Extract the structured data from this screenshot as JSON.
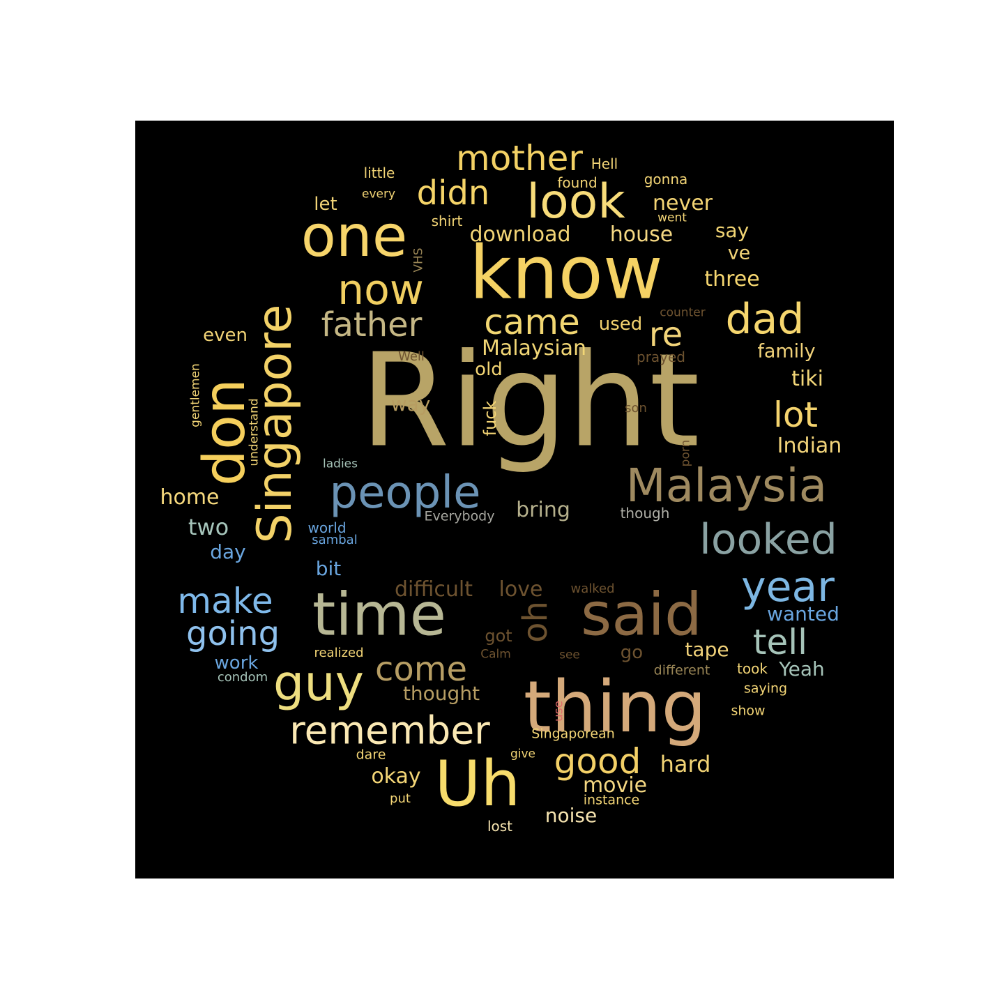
{
  "words": [
    {
      "text": "Right",
      "color": "#b8a467"
    },
    {
      "text": "know",
      "color": "#f5d264"
    },
    {
      "text": "thing",
      "color": "#d4a97a"
    },
    {
      "text": "said",
      "color": "#8c6a44"
    },
    {
      "text": "time",
      "color": "#b7b794"
    },
    {
      "text": "Uh",
      "color": "#f7dc6c"
    },
    {
      "text": "one",
      "color": "#f7d56b"
    },
    {
      "text": "look",
      "color": "#f8dc7a"
    },
    {
      "text": "Singapore",
      "color": "#f3d268"
    },
    {
      "text": "don",
      "color": "#f5cf5c"
    },
    {
      "text": "Malaysia",
      "color": "#9f8a60"
    },
    {
      "text": "people",
      "color": "#6b93b5"
    },
    {
      "text": "guy",
      "color": "#eede80"
    },
    {
      "text": "now",
      "color": "#f1cf61"
    },
    {
      "text": "dad",
      "color": "#f6d66e"
    },
    {
      "text": "looked",
      "color": "#8aa2a3"
    },
    {
      "text": "remember",
      "color": "#fbe9b4"
    },
    {
      "text": "year",
      "color": "#7db7e3"
    },
    {
      "text": "mother",
      "color": "#f3d165"
    },
    {
      "text": "came",
      "color": "#f2d772"
    },
    {
      "text": "father",
      "color": "#c5b785"
    },
    {
      "text": "come",
      "color": "#b79e64"
    },
    {
      "text": "make",
      "color": "#7fb9ea"
    },
    {
      "text": "going",
      "color": "#8fc1ed"
    },
    {
      "text": "tell",
      "color": "#a6c4b9"
    },
    {
      "text": "good",
      "color": "#f3d067"
    },
    {
      "text": "didn",
      "color": "#f5d468"
    },
    {
      "text": "lot",
      "color": "#f5d46e"
    },
    {
      "text": "re",
      "color": "#f2d47a"
    },
    {
      "text": "oh",
      "color": "#6e5330"
    },
    {
      "text": "Malaysian",
      "color": "#f2d776"
    },
    {
      "text": "Indian",
      "color": "#f3d57b"
    },
    {
      "text": "tiki",
      "color": "#f3d779"
    },
    {
      "text": "three",
      "color": "#f6d771"
    },
    {
      "text": "family",
      "color": "#f1d27a"
    },
    {
      "text": "house",
      "color": "#f5d883"
    },
    {
      "text": "download",
      "color": "#f3d576"
    },
    {
      "text": "never",
      "color": "#f4d575"
    },
    {
      "text": "say",
      "color": "#f2d574"
    },
    {
      "text": "ve",
      "color": "#f2d477"
    },
    {
      "text": "used",
      "color": "#f3d26f"
    },
    {
      "text": "old",
      "color": "#f3d574"
    },
    {
      "text": "way",
      "color": "#b79c61"
    },
    {
      "text": "fuck",
      "color": "#f4d575"
    },
    {
      "text": "even",
      "color": "#f2d477"
    },
    {
      "text": "let",
      "color": "#f2d477"
    },
    {
      "text": "home",
      "color": "#f7da7e"
    },
    {
      "text": "two",
      "color": "#a7c6bc"
    },
    {
      "text": "day",
      "color": "#6aa6e0"
    },
    {
      "text": "bit",
      "color": "#6aa6e0"
    },
    {
      "text": "bring",
      "color": "#b5b08c"
    },
    {
      "text": "difficult",
      "color": "#6e5330"
    },
    {
      "text": "love",
      "color": "#6e5330"
    },
    {
      "text": "wanted",
      "color": "#6aa6e0"
    },
    {
      "text": "tape",
      "color": "#f1d27a"
    },
    {
      "text": "Yeah",
      "color": "#a6c4b9"
    },
    {
      "text": "thought",
      "color": "#b79e64"
    },
    {
      "text": "hard",
      "color": "#f3d576"
    },
    {
      "text": "movie",
      "color": "#f5d883"
    },
    {
      "text": "noise",
      "color": "#f6e4b0"
    },
    {
      "text": "okay",
      "color": "#f3d576"
    },
    {
      "text": "got",
      "color": "#6e5330"
    },
    {
      "text": "go",
      "color": "#6e5330"
    },
    {
      "text": "work",
      "color": "#6aa6e0"
    },
    {
      "text": "little",
      "color": "#f3d576"
    },
    {
      "text": "every",
      "color": "#f3d576"
    },
    {
      "text": "found",
      "color": "#f3d576"
    },
    {
      "text": "Hell",
      "color": "#f3d576"
    },
    {
      "text": "gonna",
      "color": "#f3d576"
    },
    {
      "text": "went",
      "color": "#f3d576"
    },
    {
      "text": "shirt",
      "color": "#f3d576"
    },
    {
      "text": "VHS",
      "color": "#9a8656"
    },
    {
      "text": "counter",
      "color": "#6e5330"
    },
    {
      "text": "Well",
      "color": "#6e5330"
    },
    {
      "text": "prayed",
      "color": "#6e5330"
    },
    {
      "text": "son",
      "color": "#6e5330"
    },
    {
      "text": "porn",
      "color": "#6e5330"
    },
    {
      "text": "gentlemen",
      "color": "#f3d576"
    },
    {
      "text": "understand",
      "color": "#f3d576"
    },
    {
      "text": "ladies",
      "color": "#a6c4b9"
    },
    {
      "text": "Everybody",
      "color": "#a7a7a0"
    },
    {
      "text": "though",
      "color": "#b0b0a8"
    },
    {
      "text": "world",
      "color": "#6aa6e0"
    },
    {
      "text": "sambal",
      "color": "#6aa6e0"
    },
    {
      "text": "walked",
      "color": "#6e5330"
    },
    {
      "text": "realized",
      "color": "#f3d576"
    },
    {
      "text": "Calm",
      "color": "#6e5330"
    },
    {
      "text": "see",
      "color": "#6e5330"
    },
    {
      "text": "different",
      "color": "#9a8656"
    },
    {
      "text": "took",
      "color": "#f3d576"
    },
    {
      "text": "saying",
      "color": "#f3d576"
    },
    {
      "text": "show",
      "color": "#f3d576"
    },
    {
      "text": "condom",
      "color": "#a6c4b9"
    },
    {
      "text": "use",
      "color": "#e06a6a"
    },
    {
      "text": "Singaporean",
      "color": "#f3d576"
    },
    {
      "text": "dare",
      "color": "#f3d576"
    },
    {
      "text": "give",
      "color": "#f3d576"
    },
    {
      "text": "put",
      "color": "#f3d576"
    },
    {
      "text": "instance",
      "color": "#f3d576"
    },
    {
      "text": "lost",
      "color": "#f6e4b0"
    }
  ]
}
